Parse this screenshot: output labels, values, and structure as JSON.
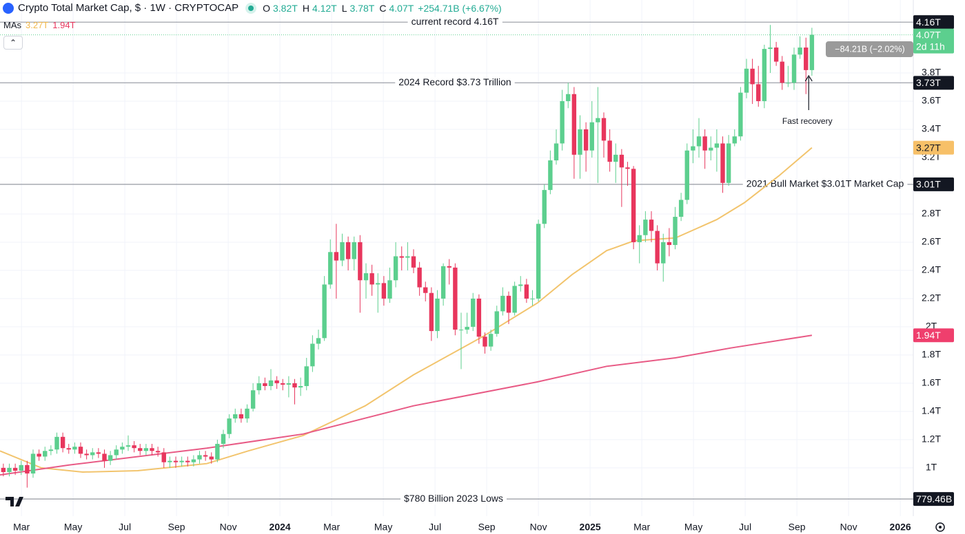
{
  "chart_data": {
    "type": "candlestick",
    "title": "Crypto Total Market Cap, $ · 1W · CRYPTOCAP",
    "ohlc_legend": [
      {
        "key": "O",
        "text": "3.82T"
      },
      {
        "key": "H",
        "text": "4.12T"
      },
      {
        "key": "L",
        "text": "3.78T"
      },
      {
        "key": "C",
        "text": "4.07T"
      }
    ],
    "change": "+254.71B (+6.67%)",
    "ma_legend": {
      "label": "MAs",
      "items": [
        {
          "text": "3.27T",
          "color": "#f2b84b"
        },
        {
          "text": "1.94T",
          "color": "#e8365d"
        }
      ]
    },
    "up_color": "#5ccf8e",
    "down_color": "#e8365d",
    "xlim": [
      1.17,
      36.37
    ],
    "ylim": [
      0.658,
      4.317
    ],
    "grid": true,
    "xticks": [
      {
        "value": 2,
        "label": "Mar"
      },
      {
        "value": 4,
        "label": "May"
      },
      {
        "value": 6,
        "label": "Jul"
      },
      {
        "value": 8,
        "label": "Sep"
      },
      {
        "value": 10,
        "label": "Nov"
      },
      {
        "value": 12,
        "label": "2024"
      },
      {
        "value": 14,
        "label": "Mar"
      },
      {
        "value": 16,
        "label": "May"
      },
      {
        "value": 18,
        "label": "Jul"
      },
      {
        "value": 20,
        "label": "Sep"
      },
      {
        "value": 22,
        "label": "Nov"
      },
      {
        "value": 24,
        "label": "2025"
      },
      {
        "value": 26,
        "label": "Mar"
      },
      {
        "value": 28,
        "label": "May"
      },
      {
        "value": 30,
        "label": "Jul"
      },
      {
        "value": 32,
        "label": "Sep"
      },
      {
        "value": 34,
        "label": "Nov"
      },
      {
        "value": 36,
        "label": "2026"
      }
    ],
    "yticks": [
      {
        "value": 1,
        "label": "1T"
      },
      {
        "value": 1.2,
        "label": "1.2T"
      },
      {
        "value": 1.4,
        "label": "1.4T"
      },
      {
        "value": 1.6,
        "label": "1.6T"
      },
      {
        "value": 1.8,
        "label": "1.8T"
      },
      {
        "value": 2,
        "label": "2T"
      },
      {
        "value": 2.2,
        "label": "2.2T"
      },
      {
        "value": 2.4,
        "label": "2.4T"
      },
      {
        "value": 2.6,
        "label": "2.6T"
      },
      {
        "value": 2.8,
        "label": "2.8T"
      },
      {
        "value": 3.2,
        "label": "3.2T"
      },
      {
        "value": 3.4,
        "label": "3.4T"
      },
      {
        "value": 3.6,
        "label": "3.6T"
      },
      {
        "value": 3.8,
        "label": "3.8T"
      }
    ],
    "x": [
      1.3,
      1.53,
      1.76,
      1.99,
      2.22,
      2.45,
      2.68,
      2.91,
      3.14,
      3.37,
      3.6,
      3.83,
      4.06,
      4.29,
      4.52,
      4.75,
      4.98,
      5.21,
      5.44,
      5.67,
      5.9,
      6.13,
      6.36,
      6.59,
      6.82,
      7.05,
      7.28,
      7.51,
      7.74,
      7.97,
      8.2,
      8.43,
      8.66,
      8.89,
      9.12,
      9.35,
      9.58,
      9.81,
      10.04,
      10.27,
      10.5,
      10.73,
      10.96,
      11.19,
      11.42,
      11.65,
      11.88,
      12.11,
      12.34,
      12.57,
      12.8,
      13.03,
      13.26,
      13.49,
      13.72,
      13.95,
      14.18,
      14.41,
      14.64,
      14.87,
      15.1,
      15.33,
      15.56,
      15.79,
      16.02,
      16.25,
      16.48,
      16.71,
      16.94,
      17.17,
      17.4,
      17.63,
      17.86,
      18.09,
      18.32,
      18.55,
      18.78,
      19.01,
      19.24,
      19.47,
      19.7,
      19.93,
      20.16,
      20.39,
      20.62,
      20.85,
      21.08,
      21.31,
      21.54,
      21.77,
      22.0,
      22.23,
      22.46,
      22.69,
      22.92,
      23.15,
      23.38,
      23.61,
      23.84,
      24.07,
      24.3,
      24.53,
      24.76,
      24.99,
      25.22,
      25.45,
      25.68,
      25.91,
      26.14,
      26.37,
      26.6,
      26.83,
      27.06,
      27.29,
      27.52,
      27.75,
      27.98,
      28.21,
      28.44,
      28.67,
      28.9,
      29.13,
      29.36,
      29.59,
      29.82,
      30.05,
      30.28,
      30.51,
      30.74,
      30.97,
      31.2,
      31.43,
      31.66,
      31.89,
      32.12,
      32.35,
      32.58
    ],
    "open": [
      1.0,
      0.97,
      1.0,
      0.98,
      1.02,
      0.96,
      1.1,
      1.08,
      1.12,
      1.13,
      1.22,
      1.14,
      1.13,
      1.15,
      1.1,
      1.09,
      1.11,
      1.1,
      1.05,
      1.09,
      1.13,
      1.15,
      1.16,
      1.14,
      1.12,
      1.14,
      1.12,
      1.11,
      1.04,
      1.05,
      1.04,
      1.05,
      1.04,
      1.06,
      1.09,
      1.08,
      1.06,
      1.17,
      1.24,
      1.35,
      1.38,
      1.35,
      1.42,
      1.55,
      1.6,
      1.58,
      1.62,
      1.6,
      1.59,
      1.6,
      1.57,
      1.58,
      1.72,
      1.88,
      1.92,
      2.3,
      2.53,
      2.47,
      2.6,
      2.48,
      2.6,
      2.33,
      2.38,
      2.3,
      2.31,
      2.2,
      2.33,
      2.5,
      2.49,
      2.5,
      2.42,
      2.28,
      2.24,
      1.97,
      2.2,
      2.43,
      2.42,
      1.98,
      1.98,
      2.0,
      2.2,
      1.93,
      1.86,
      1.95,
      2.11,
      2.22,
      2.1,
      2.29,
      2.3,
      2.2,
      2.2,
      2.73,
      2.97,
      3.18,
      3.3,
      3.6,
      3.65,
      3.22,
      3.4,
      3.25,
      3.45,
      3.48,
      3.32,
      3.17,
      3.22,
      3.13,
      3.12,
      2.6,
      2.65,
      2.76,
      2.68,
      2.45,
      2.6,
      2.58,
      2.78,
      2.9,
      3.25,
      3.28,
      3.35,
      3.25,
      3.27,
      3.3,
      3.02,
      3.3,
      3.35,
      3.66,
      3.83,
      3.72,
      3.6,
      3.97,
      3.98,
      3.88,
      3.73,
      3.73,
      3.93,
      3.98,
      3.82
    ],
    "high": [
      1.03,
      1.03,
      1.03,
      1.05,
      1.05,
      1.13,
      1.13,
      1.15,
      1.16,
      1.25,
      1.25,
      1.17,
      1.18,
      1.18,
      1.13,
      1.14,
      1.14,
      1.13,
      1.12,
      1.16,
      1.18,
      1.23,
      1.19,
      1.17,
      1.17,
      1.17,
      1.15,
      1.14,
      1.08,
      1.08,
      1.08,
      1.08,
      1.09,
      1.12,
      1.12,
      1.11,
      1.2,
      1.27,
      1.38,
      1.42,
      1.42,
      1.45,
      1.6,
      1.65,
      1.64,
      1.7,
      1.65,
      1.63,
      1.65,
      1.63,
      1.64,
      1.78,
      1.94,
      1.98,
      2.36,
      2.62,
      2.73,
      2.66,
      2.64,
      2.64,
      2.65,
      2.45,
      2.44,
      2.38,
      2.36,
      2.42,
      2.6,
      2.57,
      2.6,
      2.55,
      2.46,
      2.32,
      2.28,
      2.26,
      2.45,
      2.48,
      2.45,
      2.1,
      2.1,
      2.24,
      2.23,
      1.96,
      1.98,
      2.15,
      2.28,
      2.25,
      2.32,
      2.36,
      2.34,
      2.26,
      2.76,
      3.01,
      3.25,
      3.4,
      3.68,
      3.73,
      3.7,
      3.5,
      3.45,
      3.6,
      3.7,
      3.52,
      3.4,
      3.3,
      3.26,
      3.17,
      3.14,
      2.72,
      2.82,
      2.82,
      2.72,
      2.66,
      2.7,
      2.85,
      2.95,
      3.3,
      3.4,
      3.48,
      3.4,
      3.35,
      3.4,
      3.35,
      3.36,
      3.4,
      3.7,
      3.9,
      3.9,
      3.85,
      4.0,
      4.14,
      4.02,
      3.92,
      3.85,
      3.98,
      4.06,
      4.05,
      4.12
    ],
    "low": [
      0.94,
      0.94,
      0.95,
      0.95,
      0.86,
      0.93,
      1.05,
      1.05,
      1.09,
      1.1,
      1.11,
      1.1,
      1.1,
      1.07,
      1.06,
      1.06,
      1.07,
      1.0,
      1.02,
      1.06,
      1.1,
      1.12,
      1.11,
      1.09,
      1.09,
      1.09,
      1.08,
      1.0,
      1.0,
      1.0,
      1.01,
      1.01,
      1.01,
      1.03,
      1.05,
      1.03,
      1.04,
      1.14,
      1.21,
      1.32,
      1.32,
      1.32,
      1.4,
      1.52,
      1.55,
      1.55,
      1.56,
      1.55,
      1.5,
      1.45,
      1.51,
      1.55,
      1.68,
      1.84,
      1.9,
      2.27,
      2.2,
      2.43,
      2.4,
      2.4,
      2.1,
      2.2,
      2.22,
      2.1,
      2.15,
      2.17,
      2.28,
      2.4,
      2.4,
      2.38,
      2.22,
      2.18,
      1.9,
      1.92,
      2.15,
      2.3,
      1.94,
      1.7,
      1.95,
      1.97,
      1.88,
      1.81,
      1.83,
      1.93,
      2.08,
      2.02,
      2.08,
      2.25,
      2.17,
      2.15,
      2.18,
      2.7,
      2.94,
      3.15,
      3.25,
      3.55,
      3.05,
      3.05,
      3.1,
      3.2,
      3.02,
      3.2,
      3.1,
      3.02,
      2.85,
      3.0,
      2.55,
      2.45,
      2.6,
      2.6,
      2.4,
      2.32,
      2.5,
      2.55,
      2.75,
      2.87,
      3.16,
      3.2,
      3.12,
      3.18,
      3.1,
      2.95,
      3.0,
      3.28,
      3.32,
      3.62,
      3.58,
      3.56,
      3.55,
      3.8,
      3.85,
      3.68,
      3.7,
      3.68,
      3.9,
      3.65,
      3.78
    ],
    "close": [
      0.97,
      1.0,
      0.98,
      1.02,
      0.96,
      1.1,
      1.08,
      1.12,
      1.13,
      1.22,
      1.14,
      1.13,
      1.15,
      1.1,
      1.09,
      1.11,
      1.1,
      1.05,
      1.09,
      1.13,
      1.15,
      1.16,
      1.14,
      1.12,
      1.14,
      1.12,
      1.11,
      1.04,
      1.05,
      1.04,
      1.05,
      1.04,
      1.06,
      1.09,
      1.08,
      1.06,
      1.17,
      1.24,
      1.35,
      1.38,
      1.35,
      1.42,
      1.55,
      1.6,
      1.58,
      1.62,
      1.6,
      1.59,
      1.6,
      1.57,
      1.58,
      1.72,
      1.88,
      1.92,
      2.3,
      2.53,
      2.47,
      2.6,
      2.48,
      2.6,
      2.33,
      2.38,
      2.3,
      2.31,
      2.2,
      2.33,
      2.5,
      2.49,
      2.5,
      2.42,
      2.28,
      2.24,
      1.97,
      2.2,
      2.43,
      2.42,
      1.98,
      1.98,
      2.0,
      2.2,
      1.93,
      1.86,
      1.95,
      2.11,
      2.22,
      2.1,
      2.29,
      2.3,
      2.2,
      2.2,
      2.73,
      2.97,
      3.18,
      3.3,
      3.6,
      3.65,
      3.22,
      3.4,
      3.25,
      3.45,
      3.48,
      3.32,
      3.17,
      3.22,
      3.13,
      3.12,
      2.6,
      2.65,
      2.76,
      2.68,
      2.45,
      2.6,
      2.58,
      2.78,
      2.9,
      3.25,
      3.28,
      3.35,
      3.25,
      3.27,
      3.3,
      3.02,
      3.3,
      3.35,
      3.66,
      3.83,
      3.72,
      3.6,
      3.97,
      3.98,
      3.88,
      3.73,
      3.73,
      3.93,
      3.98,
      3.82,
      4.07
    ],
    "moving_averages": [
      {
        "color": "#f2c46d",
        "x": [
          1.17,
          2.77,
          4.37,
          6.5,
          9.17,
          10.77,
          12.9,
          15.3,
          17.17,
          19.84,
          21.97,
          23.3,
          24.64,
          25.7,
          27.3,
          28.9,
          29.97,
          31.3,
          32.58
        ],
        "values": [
          1.12,
          1.0,
          0.97,
          0.98,
          1.03,
          1.12,
          1.23,
          1.44,
          1.66,
          1.93,
          2.17,
          2.37,
          2.54,
          2.61,
          2.63,
          2.76,
          2.88,
          3.07,
          3.27
        ]
      },
      {
        "color": "#e85a85",
        "x": [
          1.17,
          3.84,
          9.17,
          12.9,
          17.17,
          21.97,
          24.64,
          27.3,
          29.44,
          32.58
        ],
        "values": [
          0.95,
          1.02,
          1.14,
          1.24,
          1.44,
          1.61,
          1.72,
          1.78,
          1.85,
          1.94
        ]
      }
    ],
    "hlines": [
      {
        "value": 4.16,
        "label": "current record 4.16T"
      },
      {
        "value": 3.73,
        "label": "2024 Record $3.73 Trillion"
      },
      {
        "value": 3.01,
        "label": "2021 Bull Market $3.01T Market Cap"
      },
      {
        "value": 0.77946,
        "label": "$780 Billion 2023 Lows"
      }
    ],
    "price_badges": [
      {
        "value": 4.16,
        "label": "4.16T",
        "color": "#131722"
      },
      {
        "value": 4.07,
        "label": "4.07T",
        "extra": "2d 11h",
        "color": "#5ccf8e"
      },
      {
        "value": 3.73,
        "label": "3.73T",
        "color": "#131722"
      },
      {
        "value": 3.27,
        "label": "3.27T",
        "color": "#f7c068"
      },
      {
        "value": 3.01,
        "label": "3.01T",
        "color": "#131722"
      },
      {
        "value": 1.94,
        "label": "1.94T",
        "color": "#ef3f6d"
      },
      {
        "value": 0.77946,
        "label": "779.46B",
        "color": "#131722"
      }
    ],
    "annotation": "Fast recovery",
    "tooltip": "−84.21B (−2.02%)"
  }
}
